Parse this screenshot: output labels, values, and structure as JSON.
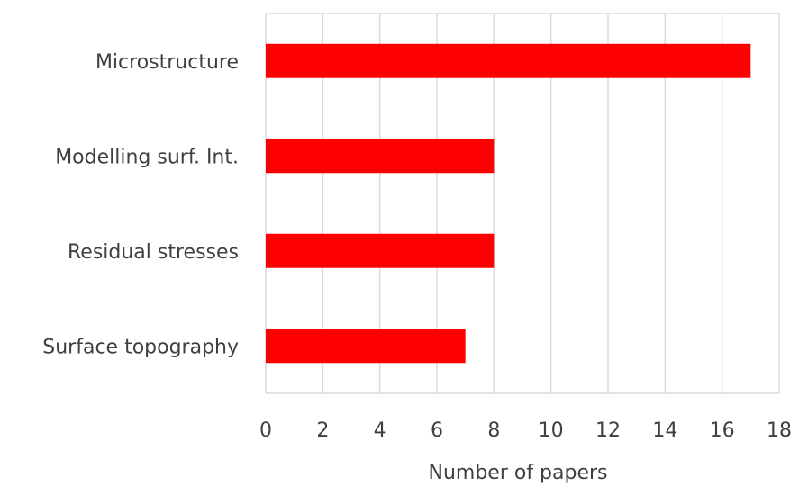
{
  "chart_data": {
    "type": "bar",
    "orientation": "horizontal",
    "categories": [
      "Microstructure",
      "Modelling surf. Int.",
      "Residual stresses",
      "Surface topography"
    ],
    "values": [
      17,
      8,
      8,
      7
    ],
    "xlabel": "Number of papers",
    "ylabel": "",
    "title": "",
    "xlim": [
      0,
      18
    ],
    "xticks": [
      "0",
      "2",
      "4",
      "6",
      "8",
      "10",
      "12",
      "14",
      "16",
      "18"
    ],
    "grid": true,
    "legend": "none",
    "bar_color": "#ff0000",
    "text_color": "#404040",
    "grid_color": "#d9d9d9"
  }
}
